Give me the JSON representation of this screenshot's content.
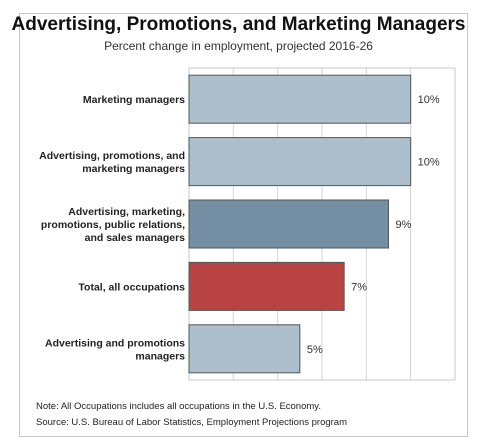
{
  "chart_data": {
    "type": "bar",
    "orientation": "horizontal",
    "title": "Advertising, Promotions, and Marketing Managers",
    "subtitle": "Percent change in employment, projected 2016-26",
    "categories": [
      "Marketing managers",
      "Advertising, promotions, and marketing managers",
      "Advertising, marketing, promotions, public relations, and sales managers",
      "Total, all occupations",
      "Advertising and promotions managers"
    ],
    "category_lines": [
      [
        "Marketing managers"
      ],
      [
        "Advertising, promotions, and",
        "marketing managers"
      ],
      [
        "Advertising, marketing,",
        "promotions, public relations,",
        "and sales managers"
      ],
      [
        "Total, all occupations"
      ],
      [
        "Advertising and promotions",
        "managers"
      ]
    ],
    "values": [
      10,
      10,
      9,
      7,
      5
    ],
    "value_labels": [
      "10%",
      "10%",
      "9%",
      "7%",
      "5%"
    ],
    "bar_colors": [
      "#adbfcc",
      "#adbfcc",
      "#748ea4",
      "#b94242",
      "#adbfcc"
    ],
    "xlim": [
      0,
      12
    ],
    "grid": true,
    "legend": "none"
  },
  "notes": {
    "note": "Note: All Occupations includes all occupations in the U.S. Economy.",
    "source": "Source: U.S. Bureau of Labor Statistics, Employment Projections program"
  },
  "colors": {
    "grid": "#d6d6d6",
    "plot_border": "#c8c8c8",
    "bar_stroke": "#555555"
  }
}
